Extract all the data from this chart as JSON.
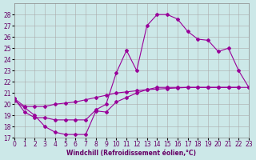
{
  "xlabel": "Windchill (Refroidissement éolien,°C)",
  "bg_color": "#cce8e8",
  "line_color": "#990099",
  "grid_color": "#aaaaaa",
  "xlim": [
    0,
    23
  ],
  "ylim": [
    17,
    29
  ],
  "yticks": [
    17,
    18,
    19,
    20,
    21,
    22,
    23,
    24,
    25,
    26,
    27,
    28
  ],
  "xticks": [
    0,
    1,
    2,
    3,
    4,
    5,
    6,
    7,
    8,
    9,
    10,
    11,
    12,
    13,
    14,
    15,
    16,
    17,
    18,
    19,
    20,
    21,
    22,
    23
  ],
  "line1_x": [
    0,
    1,
    2,
    3,
    4,
    5,
    6,
    7,
    8,
    9,
    10,
    11,
    12,
    13,
    14,
    15,
    16,
    17,
    18,
    19,
    20,
    21,
    22
  ],
  "line1_y": [
    20.5,
    19.8,
    19.8,
    19.8,
    20.0,
    20.1,
    20.2,
    20.4,
    20.6,
    20.8,
    21.0,
    21.1,
    21.2,
    21.3,
    21.35,
    21.4,
    21.45,
    21.5,
    21.5,
    21.5,
    21.5,
    21.5,
    21.5
  ],
  "line2_x": [
    0,
    1,
    2,
    3,
    4,
    5,
    6,
    7,
    8,
    9,
    10,
    11,
    12,
    13,
    14,
    15,
    16,
    17,
    18,
    19,
    20,
    21,
    22,
    23
  ],
  "line2_y": [
    20.5,
    19.3,
    18.8,
    18.8,
    18.6,
    18.6,
    18.6,
    18.6,
    19.5,
    20.0,
    22.8,
    24.8,
    23.0,
    27.0,
    28.0,
    28.0,
    27.6,
    26.5,
    25.8,
    25.7,
    24.7,
    25.0,
    23.0,
    21.5
  ],
  "line3_x": [
    0,
    1,
    2,
    3,
    4,
    5,
    6,
    7,
    8,
    9,
    10,
    11,
    12,
    13,
    14,
    15,
    16,
    17,
    18,
    19,
    20,
    21,
    22,
    23
  ],
  "line3_y": [
    20.3,
    19.7,
    19.0,
    18.0,
    17.5,
    17.3,
    17.3,
    17.3,
    19.4,
    19.3,
    20.2,
    20.6,
    21.0,
    21.3,
    21.5,
    21.5,
    21.5,
    21.5,
    21.5,
    21.5,
    21.5,
    21.5,
    21.5,
    21.5
  ]
}
